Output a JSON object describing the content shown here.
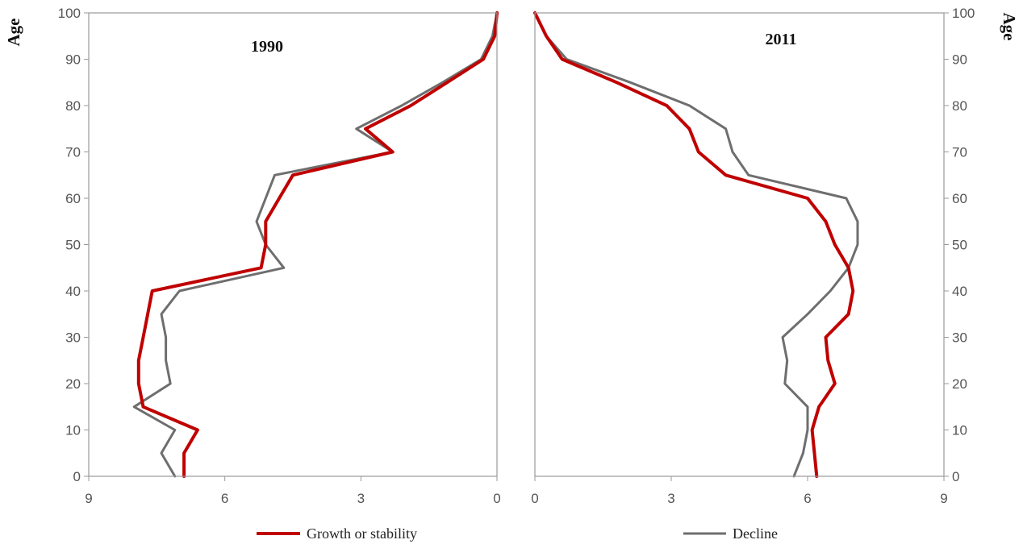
{
  "chart_data": [
    {
      "type": "line",
      "title": "1990",
      "ylabel": "Age",
      "xlim": [
        9,
        0
      ],
      "ylim": [
        0,
        100
      ],
      "x_ticks": [
        "9",
        "6",
        "3",
        "0"
      ],
      "y_ticks": [
        "0",
        "10",
        "20",
        "30",
        "40",
        "50",
        "60",
        "70",
        "80",
        "90",
        "100"
      ],
      "age": [
        0,
        5,
        10,
        15,
        20,
        25,
        30,
        35,
        40,
        45,
        50,
        55,
        60,
        65,
        70,
        75,
        80,
        85,
        90,
        95,
        100
      ],
      "series": [
        {
          "name": "Growth or stability",
          "values": [
            6.9,
            6.9,
            6.6,
            7.8,
            7.9,
            7.9,
            7.8,
            7.7,
            7.6,
            5.2,
            5.1,
            5.1,
            4.8,
            4.5,
            2.3,
            2.9,
            1.9,
            1.1,
            0.3,
            0.05,
            0.0
          ]
        },
        {
          "name": "Decline",
          "values": [
            7.1,
            7.4,
            7.1,
            8.0,
            7.2,
            7.3,
            7.3,
            7.4,
            7.0,
            4.7,
            5.1,
            5.3,
            5.1,
            4.9,
            2.3,
            3.1,
            2.1,
            1.2,
            0.35,
            0.1,
            0.0
          ]
        }
      ]
    },
    {
      "type": "line",
      "title": "2011",
      "ylabel": "Age",
      "xlim": [
        0,
        9
      ],
      "ylim": [
        0,
        100
      ],
      "x_ticks": [
        "0",
        "3",
        "6",
        "9"
      ],
      "y_ticks": [
        "0",
        "10",
        "20",
        "30",
        "40",
        "50",
        "60",
        "70",
        "80",
        "90",
        "100"
      ],
      "age": [
        0,
        5,
        10,
        15,
        20,
        25,
        30,
        35,
        40,
        45,
        50,
        55,
        60,
        65,
        70,
        75,
        80,
        85,
        90,
        95,
        100
      ],
      "series": [
        {
          "name": "Growth or stability",
          "values": [
            6.2,
            6.15,
            6.1,
            6.25,
            6.6,
            6.45,
            6.4,
            6.9,
            7.0,
            6.9,
            6.6,
            6.4,
            6.0,
            4.2,
            3.6,
            3.4,
            2.9,
            1.8,
            0.6,
            0.25,
            0.0
          ]
        },
        {
          "name": "Decline",
          "values": [
            5.7,
            5.9,
            6.0,
            6.0,
            5.5,
            5.55,
            5.45,
            6.0,
            6.5,
            6.9,
            7.1,
            7.1,
            6.85,
            4.7,
            4.35,
            4.2,
            3.4,
            2.1,
            0.7,
            0.25,
            0.0
          ]
        }
      ]
    }
  ],
  "legend": [
    {
      "label": "Growth or stability",
      "color": "#c00000"
    },
    {
      "label": "Decline",
      "color": "#6e6e6e"
    }
  ],
  "colors": {
    "growth": "#c00000",
    "decline": "#6e6e6e",
    "axis": "#9a9a9a"
  }
}
